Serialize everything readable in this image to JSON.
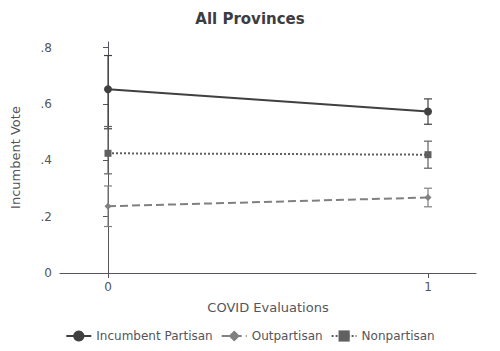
{
  "chart_data": {
    "type": "line",
    "title": "All Provinces",
    "x_label": "COVID Evaluations",
    "y_label": "Incumbent Vote",
    "x": [
      0,
      1
    ],
    "xlim": [
      -0.15,
      1.15
    ],
    "xticks": [
      0,
      1
    ],
    "ylim": [
      0,
      0.82
    ],
    "yticks": [
      0,
      {
        "value": 0.2,
        "label": ".2"
      },
      {
        "value": 0.4,
        "label": ".4"
      },
      {
        "value": 0.6,
        "label": ".6"
      },
      {
        "value": 0.8,
        "label": ".8"
      }
    ],
    "grid": false,
    "legend": "bottom",
    "series": [
      {
        "name": "Incumbent Partisan",
        "color": "#404040",
        "marker": "circle",
        "line_style": "solid",
        "values": [
          0.652,
          0.573
        ],
        "error_low": [
          0.512,
          0.528
        ],
        "error_high": [
          0.772,
          0.618
        ]
      },
      {
        "name": "Outpartisan",
        "color": "#808080",
        "marker": "diamond",
        "line_style": "dashed",
        "values": [
          0.237,
          0.268
        ],
        "error_low": [
          0.165,
          0.235
        ],
        "error_high": [
          0.309,
          0.301
        ]
      },
      {
        "name": "Nonpartisan",
        "color": "#606060",
        "marker": "square",
        "line_style": "dotted",
        "values": [
          0.425,
          0.42
        ],
        "error_low": [
          0.352,
          0.372
        ],
        "error_high": [
          0.52,
          0.468
        ]
      }
    ]
  }
}
